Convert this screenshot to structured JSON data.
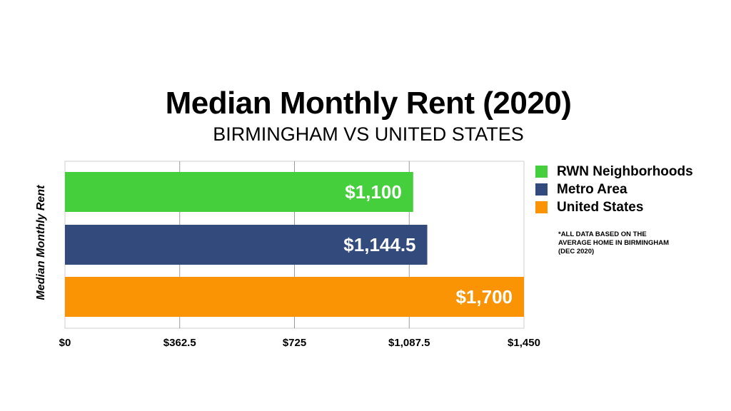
{
  "title": "Median Monthly Rent (2020)",
  "subtitle": "BIRMINGHAM VS UNITED STATES",
  "note": "*ALL DATA BASED ON THE\nAVERAGE HOME IN BIRMINGHAM\n(DEC 2020)",
  "chart_data": {
    "type": "bar",
    "orientation": "horizontal",
    "title": "Median Monthly Rent (2020)",
    "subtitle": "BIRMINGHAM VS UNITED STATES",
    "ylabel": "Median Monthly Rent",
    "xlabel": "",
    "xlim": [
      0,
      1450
    ],
    "ticks": [
      "$0",
      "$362.5",
      "$725",
      "$1,087.5",
      "$1,450"
    ],
    "grid": true,
    "legend_position": "right",
    "series": [
      {
        "name": "RWN Neighborhoods",
        "value": 1100,
        "label": "$1,100",
        "color": "#45cf3c"
      },
      {
        "name": "Metro Area",
        "value": 1144.5,
        "label": "$1,144.5",
        "color": "#324b7c"
      },
      {
        "name": "United States",
        "value": 1700,
        "label": "$1,700",
        "color": "#fa9405"
      }
    ]
  }
}
